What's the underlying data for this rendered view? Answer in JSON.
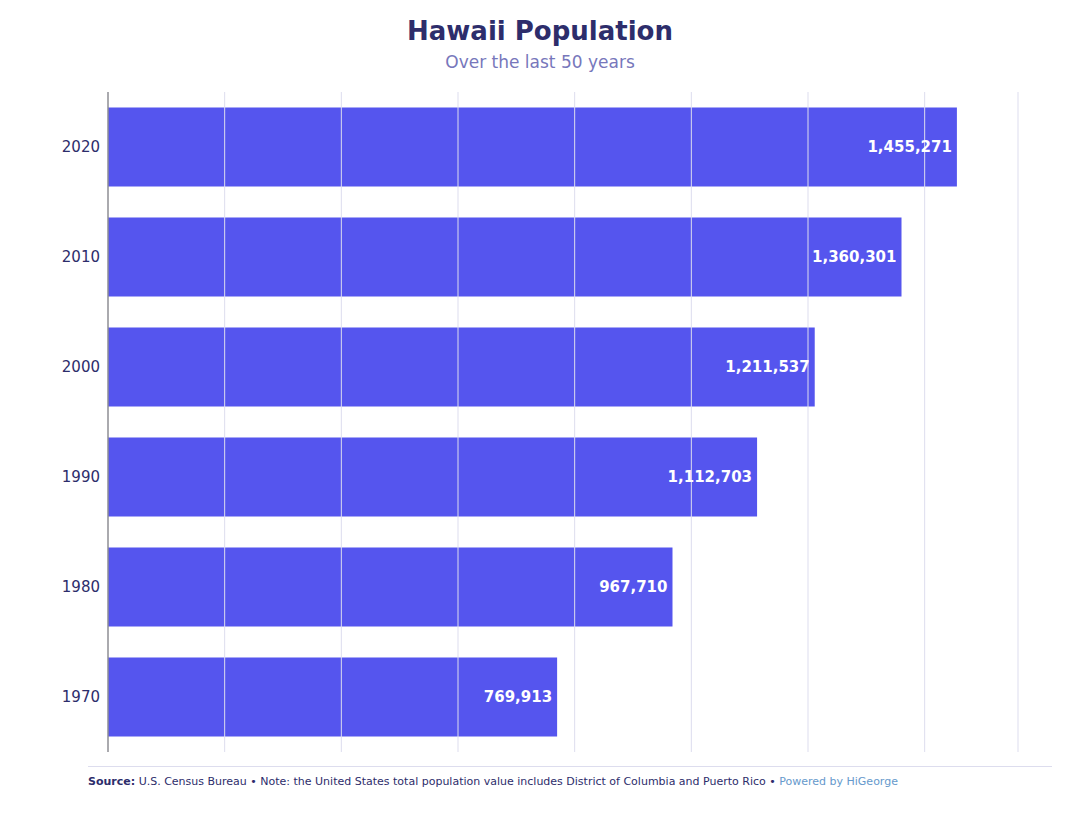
{
  "chart_data": {
    "type": "bar",
    "orientation": "horizontal",
    "title": "Hawaii Population",
    "subtitle": "Over the last 50 years",
    "categories": [
      "2020",
      "2010",
      "2000",
      "1990",
      "1980",
      "1970"
    ],
    "values": [
      1455271,
      1360301,
      1211537,
      1112703,
      967710,
      769913
    ],
    "value_labels": [
      "1,455,271",
      "1,360,301",
      "1,211,537",
      "1,112,703",
      "967,710",
      "769,913"
    ],
    "data_labels": true,
    "color": "#5555ee",
    "xlim": [
      0,
      1560000
    ],
    "xticks": [
      0,
      200000,
      400000,
      600000,
      800000,
      1000000,
      1200000,
      1400000,
      1560000
    ],
    "grid": true,
    "tick_labels": "y",
    "annotations": [
      "Source:",
      "U.S. Census Bureau • Note: the United States total population value includes District of Columbia and Puerto Rico •",
      "Powered by HiGeorge"
    ]
  }
}
